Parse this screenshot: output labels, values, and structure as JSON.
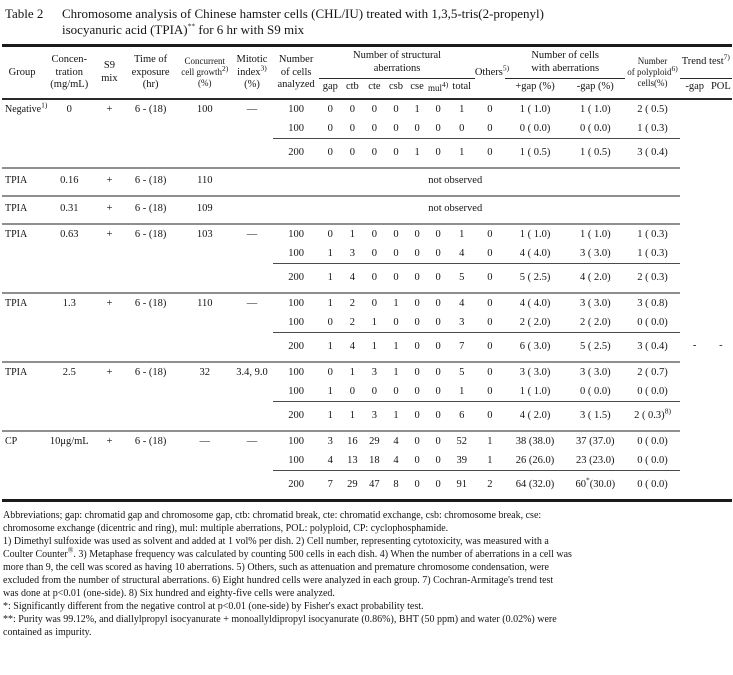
{
  "title": {
    "label": "Table 2",
    "text": "Chromosome analysis of Chinese hamster cells (CHL/IU) treated with 1,3,5-tris(2-propenyl)\nisocyanuric acid (TPIA)^**^ for 6 hr with S9 mix"
  },
  "header": {
    "group": "Group",
    "concentration": "Concen-\ntration\n(mg/mL)",
    "s9": "S9\nmix",
    "exposure": "Time of\nexposure\n(hr)",
    "growth": "Concurrent\ncell growth^2)^\n(%)",
    "mitotic": "Mitotic\nindex^3)^\n(%)",
    "cells": "Number\nof cells\nanalyzed",
    "structural": "Number of structural\naberrations",
    "sub": [
      "gap",
      "ctb",
      "cte",
      "csb",
      "cse",
      "mul^4)^",
      "total"
    ],
    "others": "Others^5)^",
    "with_aberrations": "Number of cells\nwith aberrations",
    "sub2": [
      "+gap (%)",
      "-gap (%)"
    ],
    "polyploid": "Number\nof polyploid^6)^\ncells(%)",
    "trend": "Trend test^7)^",
    "sub3": [
      "-gap",
      "POL"
    ]
  },
  "table": {
    "groups": [
      {
        "info": [
          "Negative^1)^",
          "0",
          "+",
          "6 - (18)",
          "100",
          "—"
        ],
        "rows": [
          [
            "100",
            "0",
            "0",
            "0",
            "0",
            "1",
            "0",
            "1",
            "0",
            "1 ( 1.0)",
            "1 ( 1.0)",
            "2 ( 0.5)"
          ],
          [
            "100",
            "0",
            "0",
            "0",
            "0",
            "0",
            "0",
            "0",
            "0",
            "0 ( 0.0)",
            "0 ( 0.0)",
            "1 ( 0.3)"
          ]
        ],
        "total": [
          "200",
          "0",
          "0",
          "0",
          "0",
          "1",
          "0",
          "1",
          "0",
          "1 ( 0.5)",
          "1 ( 0.5)",
          "3 ( 0.4)"
        ],
        "trend": [
          "",
          ""
        ]
      },
      {
        "info": [
          "TPIA",
          "0.16",
          "+",
          "6 - (18)",
          "110"
        ],
        "not_observed": "not observed",
        "trend": [
          "",
          ""
        ]
      },
      {
        "info": [
          "TPIA",
          "0.31",
          "+",
          "6 - (18)",
          "109"
        ],
        "not_observed": "not observed",
        "trend": [
          "",
          ""
        ]
      },
      {
        "info": [
          "TPIA",
          "0.63",
          "+",
          "6 - (18)",
          "103",
          "—"
        ],
        "rows": [
          [
            "100",
            "0",
            "1",
            "0",
            "0",
            "0",
            "0",
            "1",
            "0",
            "1 ( 1.0)",
            "1 ( 1.0)",
            "1 ( 0.3)"
          ],
          [
            "100",
            "1",
            "3",
            "0",
            "0",
            "0",
            "0",
            "4",
            "0",
            "4 ( 4.0)",
            "3 ( 3.0)",
            "1 ( 0.3)"
          ]
        ],
        "total": [
          "200",
          "1",
          "4",
          "0",
          "0",
          "0",
          "0",
          "5",
          "0",
          "5 ( 2.5)",
          "4 ( 2.0)",
          "2 ( 0.3)"
        ],
        "trend": [
          "",
          ""
        ]
      },
      {
        "info": [
          "TPIA",
          "1.3",
          "+",
          "6 - (18)",
          "110",
          "—"
        ],
        "rows": [
          [
            "100",
            "1",
            "2",
            "0",
            "1",
            "0",
            "0",
            "4",
            "0",
            "4 ( 4.0)",
            "3 ( 3.0)",
            "3 ( 0.8)"
          ],
          [
            "100",
            "0",
            "2",
            "1",
            "0",
            "0",
            "0",
            "3",
            "0",
            "2 ( 2.0)",
            "2 ( 2.0)",
            "0 ( 0.0)"
          ]
        ],
        "total": [
          "200",
          "1",
          "4",
          "1",
          "1",
          "0",
          "0",
          "7",
          "0",
          "6 ( 3.0)",
          "5 ( 2.5)",
          "3 ( 0.4)"
        ],
        "trend": [
          "-",
          "-"
        ]
      },
      {
        "info": [
          "TPIA",
          "2.5",
          "+",
          "6 - (18)",
          "32",
          "3.4, 9.0"
        ],
        "rows": [
          [
            "100",
            "0",
            "1",
            "3",
            "1",
            "0",
            "0",
            "5",
            "0",
            "3 ( 3.0)",
            "3 ( 3.0)",
            "2 ( 0.7)"
          ],
          [
            "100",
            "1",
            "0",
            "0",
            "0",
            "0",
            "0",
            "1",
            "0",
            "1 ( 1.0)",
            "0 ( 0.0)",
            "0 ( 0.0)"
          ]
        ],
        "total": [
          "200",
          "1",
          "1",
          "3",
          "1",
          "0",
          "0",
          "6",
          "0",
          "4 ( 2.0)",
          "3 ( 1.5)",
          "2 ( 0.3)^8)^"
        ],
        "trend": [
          "",
          ""
        ]
      },
      {
        "info": [
          "CP",
          "10μg/mL",
          "+",
          "6 - (18)",
          "—",
          "—"
        ],
        "rows": [
          [
            "100",
            "3",
            "16",
            "29",
            "4",
            "0",
            "0",
            "52",
            "1",
            "38 (38.0)",
            "37 (37.0)",
            "0 ( 0.0)"
          ],
          [
            "100",
            "4",
            "13",
            "18",
            "4",
            "0",
            "0",
            "39",
            "1",
            "26 (26.0)",
            "23 (23.0)",
            "0 ( 0.0)"
          ]
        ],
        "total": [
          "200",
          "7",
          "29",
          "47",
          "8",
          "0",
          "0",
          "91",
          "2",
          "64 (32.0)",
          "60^*^(30.0)",
          "0 ( 0.0)"
        ],
        "trend": [
          "",
          ""
        ]
      }
    ]
  },
  "footnotes": {
    "lines": [
      "Abbreviations; gap: chromatid gap and chromosome gap, ctb: chromatid break, cte: chromatid exchange, csb: chromosome break, cse:",
      "chromosome exchange (dicentric and ring), mul: multiple aberrations, POL: polyploid, CP: cyclophosphamide.",
      "1) Dimethyl sulfoxide was used as solvent and added at 1 vol% per dish. 2) Cell number, representing cytotoxicity, was measured with a",
      "Coulter Counter^®^. 3) Metaphase frequency was calculated by counting 500 cells in each dish. 4) When the number of aberrations in a cell was",
      "more than 9, the cell was scored as having 10 aberrations. 5) Others, such as attenuation and premature chromosome condensation, were",
      "excluded from the number of structural aberrations. 6) Eight hundred cells were analyzed in each group. 7) Cochran-Armitage's trend test",
      "was done at p<0.01 (one-side). 8) Six hundred and eighty-five cells were analyzed.",
      "*: Significantly different from the negative control at p<0.01 (one-side) by Fisher's exact probability test.",
      "**: Purity was 99.12%, and diallylpropyl isocyanurate + monoallyldipropyl isocyanurate (0.86%), BHT (50 ppm) and water (0.02%) were",
      "contained as impurity."
    ]
  }
}
